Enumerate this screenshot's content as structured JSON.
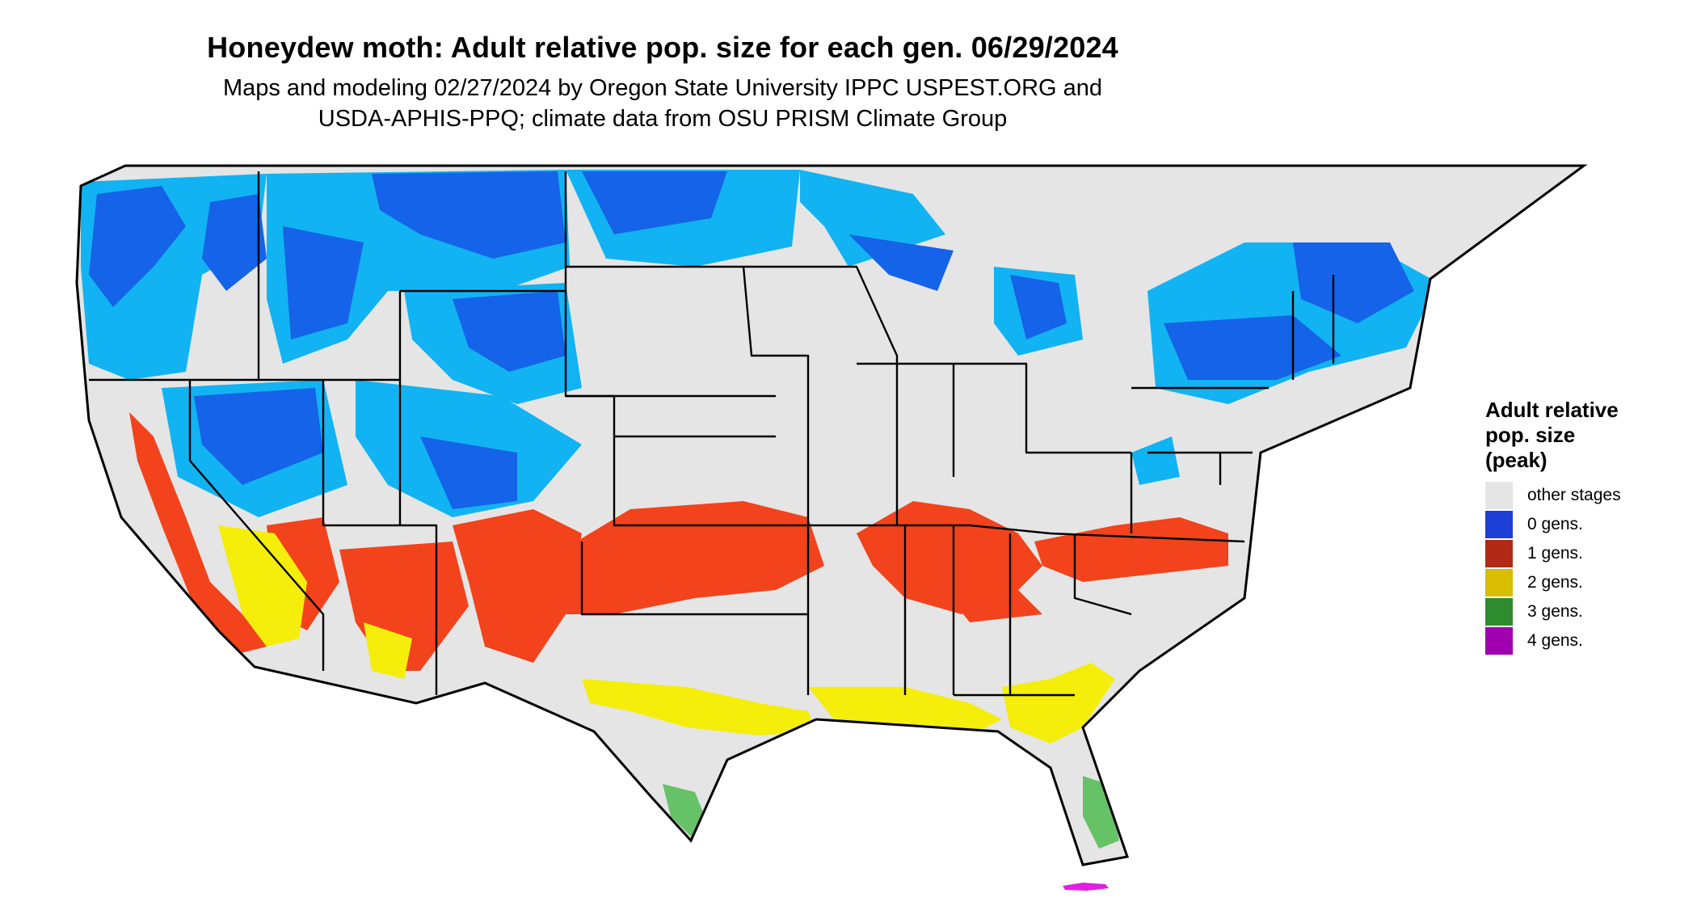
{
  "title": "Honeydew moth: Adult relative pop. size for each gen. 06/29/2024",
  "subtitle_line1": "Maps and modeling 02/27/2024 by Oregon State University IPPC USPEST.ORG and",
  "subtitle_line2": "USDA-APHIS-PPQ; climate data from OSU PRISM Climate Group",
  "legend": {
    "title_lines": [
      "Adult relative",
      "pop. size",
      "(peak)"
    ],
    "items": [
      {
        "label": "other stages",
        "color": "#e5e5e5"
      },
      {
        "label": "0 gens.",
        "color": "#1d3fd6"
      },
      {
        "label": "1 gens.",
        "color": "#b22a15"
      },
      {
        "label": "2 gens.",
        "color": "#d8bd00"
      },
      {
        "label": "3 gens.",
        "color": "#2e8b2e"
      },
      {
        "label": "4 gens.",
        "color": "#a000b0"
      }
    ]
  },
  "map": {
    "region": "contiguous-united-states",
    "base_color": "#e5e5e5",
    "zone_colors": {
      "zero_gens_dark": "#1463e8",
      "zero_gens_light": "#12b3f2",
      "one_gen": "#f2431c",
      "two_gens": "#f4ee0a",
      "three_gens": "#66c266",
      "four_gens": "#e020e0"
    },
    "border_color": "#000000"
  }
}
